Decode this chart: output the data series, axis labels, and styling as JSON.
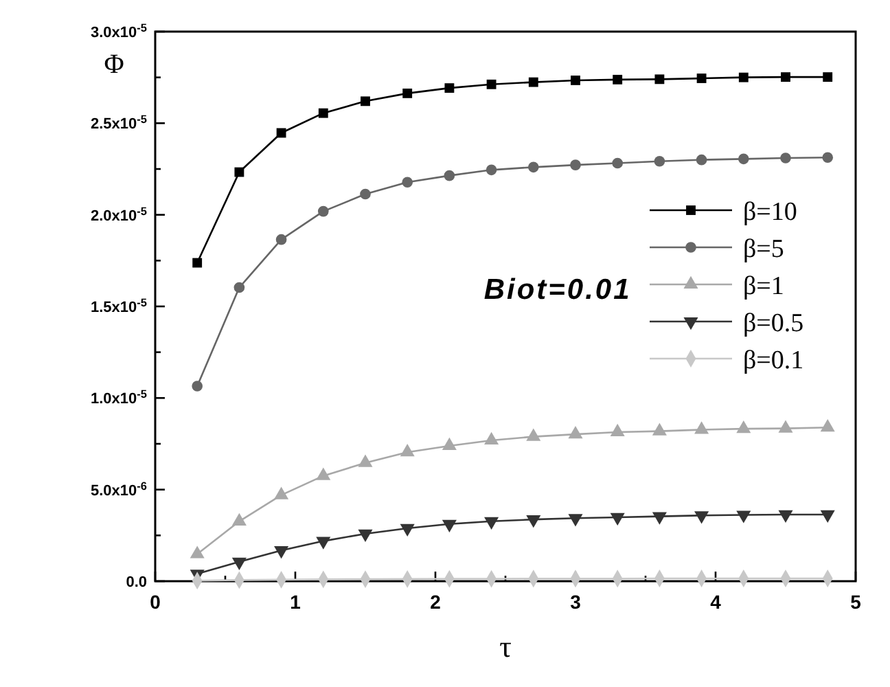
{
  "chart_data": {
    "type": "line",
    "xlabel": "τ",
    "ylabel": "Φ",
    "annotations": [
      "Biot=0.01"
    ],
    "x": [
      0.3,
      0.6,
      0.9,
      1.2,
      1.5,
      1.8,
      2.1,
      2.4,
      2.7,
      3.0,
      3.3,
      3.6,
      3.9,
      4.2,
      4.5,
      4.8
    ],
    "series": [
      {
        "name": "β=10",
        "color": "#000000",
        "marker": "square",
        "values": [
          1.738e-05,
          2.233e-05,
          2.447e-05,
          2.555e-05,
          2.62e-05,
          2.663e-05,
          2.692e-05,
          2.712e-05,
          2.724e-05,
          2.734e-05,
          2.738e-05,
          2.74e-05,
          2.745e-05,
          2.75e-05,
          2.752e-05,
          2.752e-05
        ]
      },
      {
        "name": "β=5",
        "color": "#666666",
        "marker": "circle",
        "values": [
          1.065e-05,
          1.603e-05,
          1.865e-05,
          2.019e-05,
          2.113e-05,
          2.178e-05,
          2.214e-05,
          2.245e-05,
          2.26e-05,
          2.272e-05,
          2.282e-05,
          2.292e-05,
          2.3e-05,
          2.305e-05,
          2.31e-05,
          2.313e-05
        ]
      },
      {
        "name": "β=1",
        "color": "#a8a8a8",
        "marker": "triangle",
        "values": [
          1.48e-06,
          3.27e-06,
          4.7e-06,
          5.75e-06,
          6.46e-06,
          7.04e-06,
          7.39e-06,
          7.69e-06,
          7.89e-06,
          8.02e-06,
          8.14e-06,
          8.19e-06,
          8.27e-06,
          8.32e-06,
          8.34e-06,
          8.39e-06
        ]
      },
      {
        "name": "β=0.5",
        "color": "#333333",
        "marker": "triangle-down",
        "values": [
          4e-07,
          1.06e-06,
          1.68e-06,
          2.19e-06,
          2.59e-06,
          2.89e-06,
          3.12e-06,
          3.27e-06,
          3.37e-06,
          3.44e-06,
          3.49e-06,
          3.54e-06,
          3.59e-06,
          3.62e-06,
          3.64e-06,
          3.64e-06
        ]
      },
      {
        "name": "β=0.1",
        "color": "#c8c8c8",
        "marker": "diamond",
        "values": [
          3e-08,
          6e-08,
          8e-08,
          1e-07,
          1.1e-07,
          1.2e-07,
          1.3e-07,
          1.3e-07,
          1.4e-07,
          1.4e-07,
          1.4e-07,
          1.5e-07,
          1.5e-07,
          1.5e-07,
          1.5e-07,
          1.5e-07
        ]
      }
    ],
    "xlim": [
      0,
      5
    ],
    "xticks": [
      0,
      {
        "value": 0.5,
        "label": null
      },
      1,
      {
        "value": 1.5,
        "label": null
      },
      2,
      {
        "value": 2.5,
        "label": null
      },
      3,
      {
        "value": 3.5,
        "label": null
      },
      4,
      {
        "value": 4.5,
        "label": null
      },
      5
    ],
    "ylim": [
      0,
      3e-05
    ],
    "yticks": [
      {
        "value": 0,
        "label": "0.0"
      },
      {
        "value": 2.5e-06,
        "label": null
      },
      {
        "value": 5e-06,
        "label": "5.0x10$^{-6}$"
      },
      {
        "value": 7.5e-06,
        "label": null
      },
      {
        "value": 1e-05,
        "label": "1.0x10$^{-5}$"
      },
      {
        "value": 1.25e-05,
        "label": null
      },
      {
        "value": 1.5e-05,
        "label": "1.5x10$^{-5}$"
      },
      {
        "value": 1.75e-05,
        "label": null
      },
      {
        "value": 2e-05,
        "label": "2.0x10$^{-5}$"
      },
      {
        "value": 2.25e-05,
        "label": null
      },
      {
        "value": 2.5e-05,
        "label": "2.5x10$^{-5}$"
      },
      {
        "value": 2.75e-05,
        "label": null
      },
      {
        "value": 3e-05,
        "label": "3.0x10$^{-5}$"
      }
    ],
    "grid": false,
    "legend": "right"
  }
}
